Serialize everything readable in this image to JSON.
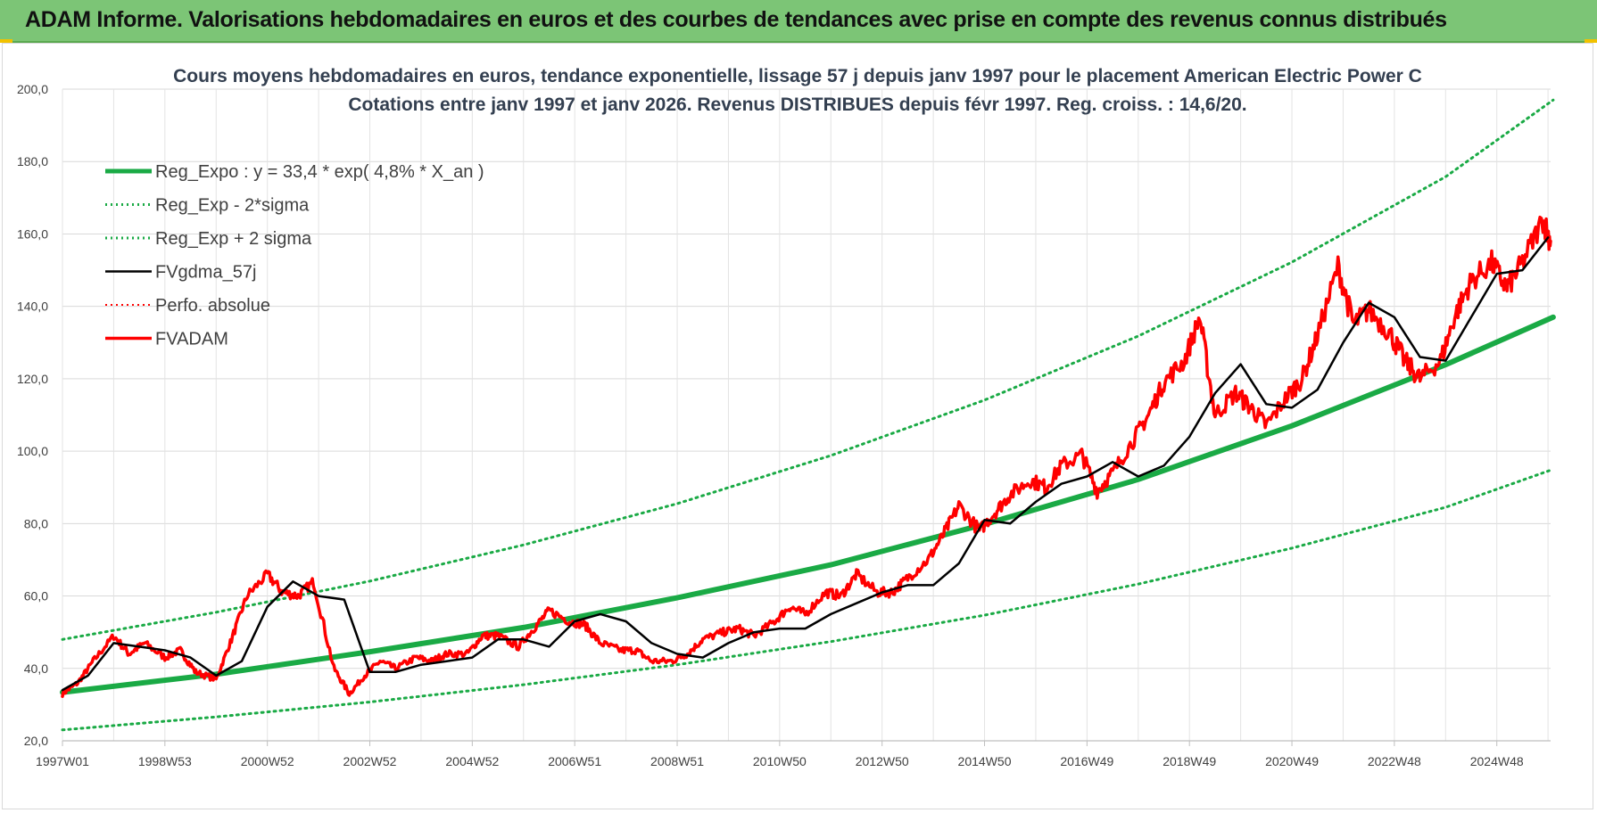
{
  "banner": {
    "text": "ADAM Informe. Valorisations hebdomadaires en euros et des courbes de tendances avec prise en compte des revenus connus distribués",
    "color": "#7cc576"
  },
  "chart_data": {
    "type": "line",
    "title_line1": "Cours moyens hebdomadaires en euros, tendance exponentielle, lissage 57 j depuis janv 1997  pour le placement American Electric Power C",
    "title_line2": "Cotations entre janv 1997 et janv 2026. Revenus DISTRIBUES depuis févr 1997. Reg. croiss. : 14,6/20.",
    "xlabel": "",
    "ylabel": "",
    "x_range": [
      1997.0,
      2026.05
    ],
    "ylim": [
      20,
      200
    ],
    "y_ticks": [
      "20,0",
      "40,0",
      "60,0",
      "80,0",
      "100,0",
      "120,0",
      "140,0",
      "160,0",
      "180,0",
      "200,0"
    ],
    "x_ticks": [
      {
        "label": "1997W01",
        "x": 1997.0
      },
      {
        "label": "1998W53",
        "x": 1999.0
      },
      {
        "label": "2000W52",
        "x": 2001.0
      },
      {
        "label": "2002W52",
        "x": 2003.0
      },
      {
        "label": "2004W52",
        "x": 2005.0
      },
      {
        "label": "2006W51",
        "x": 2007.0
      },
      {
        "label": "2008W51",
        "x": 2009.0
      },
      {
        "label": "2010W50",
        "x": 2011.0
      },
      {
        "label": "2012W50",
        "x": 2013.0
      },
      {
        "label": "2014W50",
        "x": 2015.0
      },
      {
        "label": "2016W49",
        "x": 2017.0
      },
      {
        "label": "2018W49",
        "x": 2019.0
      },
      {
        "label": "2020W49",
        "x": 2021.0
      },
      {
        "label": "2022W48",
        "x": 2023.0
      },
      {
        "label": "2024W48",
        "x": 2025.0
      }
    ],
    "grid": true,
    "legend_position": "top-left",
    "series": [
      {
        "name": "Reg_Expo : y = 33,4 * exp( 4,8% *  X_an )",
        "color": "#1aaa45",
        "style": "solid",
        "width": 6,
        "x": [
          1997.0,
          2000.0,
          2003.0,
          2006.0,
          2009.0,
          2012.0,
          2015.0,
          2018.0,
          2021.0,
          2024.0,
          2026.1
        ],
        "y": [
          33.4,
          38.4,
          44.6,
          51.3,
          59.5,
          68.6,
          79.8,
          92.2,
          107.0,
          123.9,
          137.0
        ]
      },
      {
        "name": "Reg_Exp - 2*sigma",
        "color": "#1aaa45",
        "style": "dotted",
        "width": 3,
        "x": [
          1997.0,
          2000.0,
          2003.0,
          2006.0,
          2009.0,
          2012.0,
          2015.0,
          2018.0,
          2021.0,
          2024.0,
          2026.1
        ],
        "y": [
          23.0,
          26.6,
          30.7,
          35.5,
          41.0,
          47.4,
          54.7,
          63.3,
          73.2,
          84.5,
          95.0
        ]
      },
      {
        "name": "Reg_Exp + 2 sigma",
        "color": "#1aaa45",
        "style": "dotted",
        "width": 3,
        "x": [
          1997.0,
          2000.0,
          2003.0,
          2006.0,
          2009.0,
          2012.0,
          2015.0,
          2018.0,
          2021.0,
          2024.0,
          2026.1
        ],
        "y": [
          48.0,
          55.5,
          64.1,
          74.1,
          85.5,
          98.8,
          114.1,
          131.8,
          152.2,
          175.8,
          197.0
        ]
      },
      {
        "name": "FVgdma_57j",
        "color": "#000000",
        "style": "solid",
        "width": 2.5,
        "x": [
          1997.0,
          1997.5,
          1998.0,
          1998.5,
          1999.0,
          1999.5,
          2000.0,
          2000.5,
          2001.0,
          2001.5,
          2002.0,
          2002.5,
          2003.0,
          2003.5,
          2004.0,
          2004.5,
          2005.0,
          2005.5,
          2006.0,
          2006.5,
          2007.0,
          2007.5,
          2008.0,
          2008.5,
          2009.0,
          2009.5,
          2010.0,
          2010.5,
          2011.0,
          2011.5,
          2012.0,
          2012.5,
          2013.0,
          2013.5,
          2014.0,
          2014.5,
          2015.0,
          2015.5,
          2016.0,
          2016.5,
          2017.0,
          2017.5,
          2018.0,
          2018.5,
          2019.0,
          2019.5,
          2020.0,
          2020.5,
          2021.0,
          2021.5,
          2022.0,
          2022.5,
          2023.0,
          2023.5,
          2024.0,
          2024.5,
          2025.0,
          2025.5,
          2026.0
        ],
        "y": [
          34,
          38,
          47,
          46,
          45,
          43,
          38,
          42,
          57,
          64,
          60,
          59,
          39,
          39,
          41,
          42,
          43,
          48,
          48,
          46,
          53,
          55,
          53,
          47,
          44,
          43,
          47,
          50,
          51,
          51,
          55,
          58,
          61,
          63,
          63,
          69,
          81,
          80,
          86,
          91,
          93,
          97,
          93,
          96,
          104,
          116,
          124,
          113,
          112,
          117,
          130,
          141,
          137,
          126,
          125,
          137,
          149,
          150,
          159
        ]
      },
      {
        "name": "Perfo. absolue",
        "color": "#ff0000",
        "style": "dotted",
        "width": 2,
        "x": [],
        "y": []
      },
      {
        "name": "FVADAM",
        "color": "#ff0000",
        "style": "solid",
        "width": 3.5,
        "x": [
          1997.0,
          1997.3,
          1997.6,
          1998.0,
          1998.3,
          1998.6,
          1999.0,
          1999.3,
          1999.6,
          2000.0,
          2000.3,
          2000.6,
          2001.0,
          2001.3,
          2001.6,
          2001.9,
          2002.3,
          2002.6,
          2002.9,
          2003.2,
          2003.5,
          2003.9,
          2004.2,
          2004.5,
          2004.9,
          2005.2,
          2005.5,
          2005.9,
          2006.2,
          2006.5,
          2006.9,
          2007.2,
          2007.5,
          2007.9,
          2008.2,
          2008.5,
          2008.9,
          2009.2,
          2009.5,
          2009.9,
          2010.2,
          2010.5,
          2010.9,
          2011.2,
          2011.5,
          2011.9,
          2012.2,
          2012.5,
          2012.9,
          2013.2,
          2013.5,
          2013.9,
          2014.2,
          2014.5,
          2014.9,
          2015.2,
          2015.5,
          2015.9,
          2016.2,
          2016.5,
          2016.9,
          2017.2,
          2017.5,
          2017.9,
          2018.2,
          2018.5,
          2018.9,
          2019.2,
          2019.5,
          2019.9,
          2020.2,
          2020.5,
          2020.9,
          2021.2,
          2021.5,
          2021.9,
          2022.2,
          2022.5,
          2022.9,
          2023.2,
          2023.5,
          2023.9,
          2024.2,
          2024.5,
          2024.9,
          2025.2,
          2025.5,
          2025.9,
          2026.05
        ],
        "y": [
          33,
          36,
          42,
          49,
          44,
          47,
          43,
          45,
          39,
          37,
          48,
          60,
          66,
          61,
          60,
          64,
          40,
          33,
          38,
          42,
          40,
          43,
          42,
          44,
          44,
          49,
          49,
          46,
          51,
          56,
          53,
          52,
          47,
          45,
          45,
          42,
          42,
          44,
          48,
          50,
          51,
          49,
          53,
          57,
          55,
          61,
          60,
          66,
          61,
          61,
          65,
          70,
          77,
          85,
          78,
          83,
          88,
          92,
          90,
          96,
          99,
          89,
          94,
          103,
          110,
          119,
          125,
          137,
          110,
          116,
          112,
          107,
          115,
          120,
          132,
          151,
          135,
          139,
          133,
          125,
          120,
          125,
          138,
          147,
          152,
          145,
          152,
          164,
          158
        ]
      }
    ]
  }
}
